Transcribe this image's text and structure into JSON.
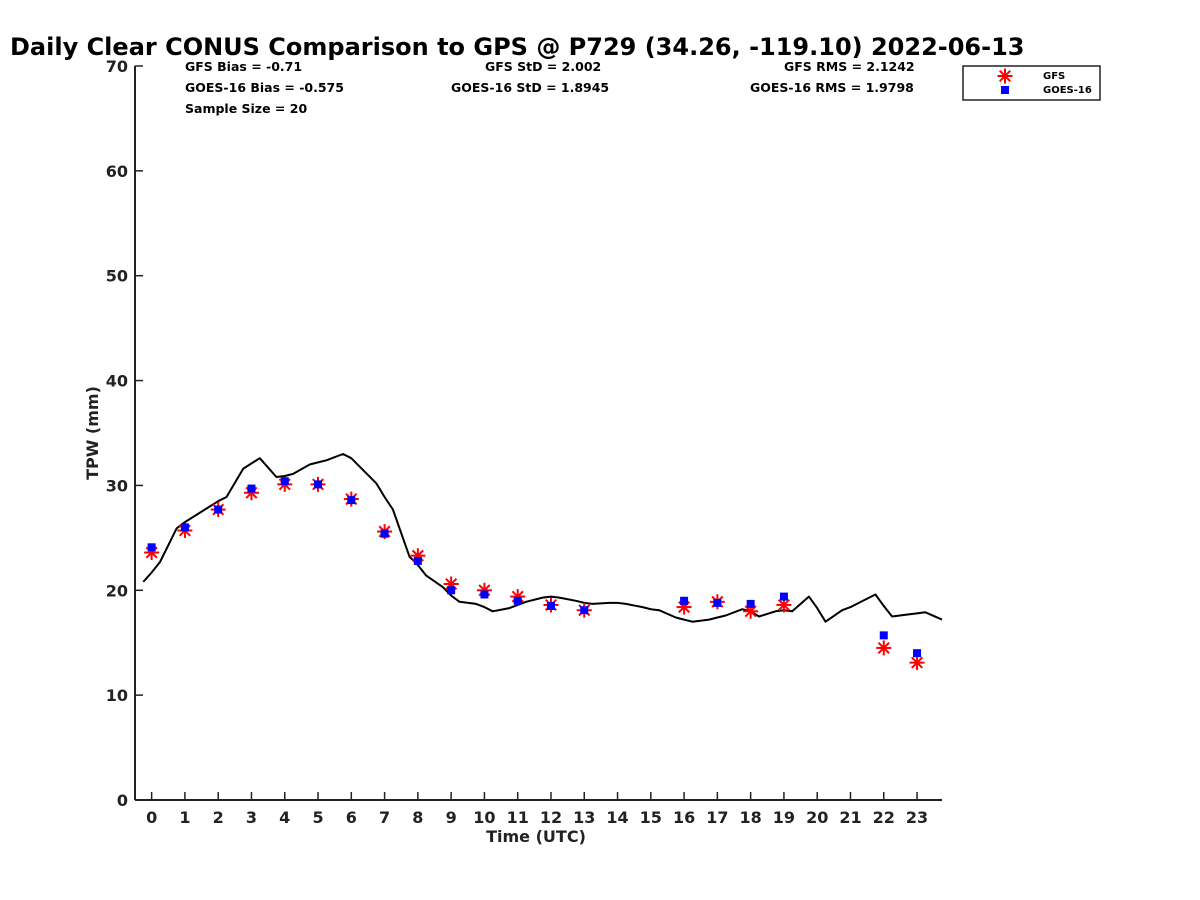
{
  "chart_data": {
    "type": "scatter",
    "title": "Daily Clear CONUS Comparison to GPS @ P729 (34.26, -119.10) 2022-06-13",
    "xlabel": "Time (UTC)",
    "ylabel": "TPW (mm)",
    "xlim": [
      -0.5,
      23.75
    ],
    "ylim": [
      0,
      70
    ],
    "x_ticks": [
      0,
      1,
      2,
      3,
      4,
      5,
      6,
      7,
      8,
      9,
      10,
      11,
      12,
      13,
      14,
      15,
      16,
      17,
      18,
      19,
      20,
      21,
      22,
      23
    ],
    "y_ticks": [
      0,
      10,
      20,
      30,
      40,
      50,
      60,
      70
    ],
    "grid": false,
    "legend_position": "top-right",
    "stats": {
      "gfs_bias": "GFS Bias = -0.71",
      "gfs_std": "GFS StD = 2.002",
      "gfs_rms": "GFS RMS = 2.1242",
      "goes_bias": "GOES-16 Bias = -0.575",
      "goes_std": "GOES-16 StD = 1.8945",
      "goes_rms": "GOES-16 RMS = 1.9798",
      "sample_size": "Sample Size = 20"
    },
    "series": [
      {
        "name": "GFS",
        "marker": "asterisk",
        "color": "#ff0000",
        "x": [
          0,
          1,
          2,
          3,
          4,
          5,
          6,
          7,
          8,
          9,
          10,
          11,
          12,
          13,
          16,
          17,
          18,
          19,
          22,
          23
        ],
        "y": [
          23.6,
          25.7,
          27.7,
          29.3,
          30.1,
          30.1,
          28.7,
          25.6,
          23.3,
          20.6,
          20.0,
          19.4,
          18.6,
          18.1,
          18.4,
          18.9,
          18.0,
          18.6,
          14.5,
          13.1
        ]
      },
      {
        "name": "GOES-16",
        "marker": "square",
        "color": "#0000ff",
        "x": [
          0,
          1,
          2,
          3,
          4,
          5,
          6,
          7,
          8,
          9,
          10,
          11,
          12,
          13,
          16,
          17,
          18,
          19,
          22,
          23
        ],
        "y": [
          24.1,
          26.0,
          27.7,
          29.7,
          30.4,
          30.1,
          28.6,
          25.4,
          22.8,
          20.0,
          19.6,
          19.0,
          18.5,
          18.1,
          19.0,
          18.8,
          18.7,
          19.4,
          15.7,
          14.0
        ]
      },
      {
        "name": "GPS",
        "marker": "line",
        "color": "#000000",
        "x": [
          -0.25,
          0,
          0.25,
          0.75,
          1,
          1.5,
          2,
          2.25,
          2.75,
          3,
          3.25,
          3.75,
          4,
          4.25,
          4.75,
          5,
          5.25,
          5.75,
          6,
          6.25,
          6.75,
          7,
          7.25,
          7.75,
          8,
          8.25,
          8.75,
          9,
          9.25,
          9.75,
          10,
          10.25,
          10.75,
          11,
          11.25,
          11.75,
          12,
          12.25,
          12.75,
          13,
          13.25,
          13.75,
          14,
          14.25,
          14.75,
          15,
          15.25,
          15.75,
          16,
          16.25,
          16.75,
          17,
          17.25,
          17.75,
          18,
          18.25,
          18.75,
          19,
          19.25,
          19.75,
          20,
          20.25,
          20.75,
          21,
          21.25,
          21.75,
          22,
          22.25,
          22.75,
          23,
          23.25,
          23.75
        ],
        "y": [
          20.8,
          21.7,
          22.7,
          25.9,
          26.5,
          27.5,
          28.5,
          28.9,
          31.6,
          32.1,
          32.6,
          30.8,
          30.9,
          31.1,
          32.0,
          32.2,
          32.4,
          33.0,
          32.6,
          31.8,
          30.2,
          28.9,
          27.7,
          23.2,
          22.4,
          21.4,
          20.3,
          19.5,
          18.9,
          18.7,
          18.4,
          18.0,
          18.3,
          18.6,
          18.9,
          19.3,
          19.4,
          19.3,
          19.0,
          18.8,
          18.7,
          18.8,
          18.8,
          18.7,
          18.4,
          18.2,
          18.1,
          17.4,
          17.2,
          17.0,
          17.2,
          17.4,
          17.6,
          18.2,
          18.0,
          17.5,
          18.0,
          18.1,
          18.0,
          19.4,
          18.3,
          17.0,
          18.1,
          18.4,
          18.8,
          19.6,
          18.5,
          17.5,
          17.7,
          17.8,
          17.9,
          17.2
        ]
      }
    ]
  }
}
